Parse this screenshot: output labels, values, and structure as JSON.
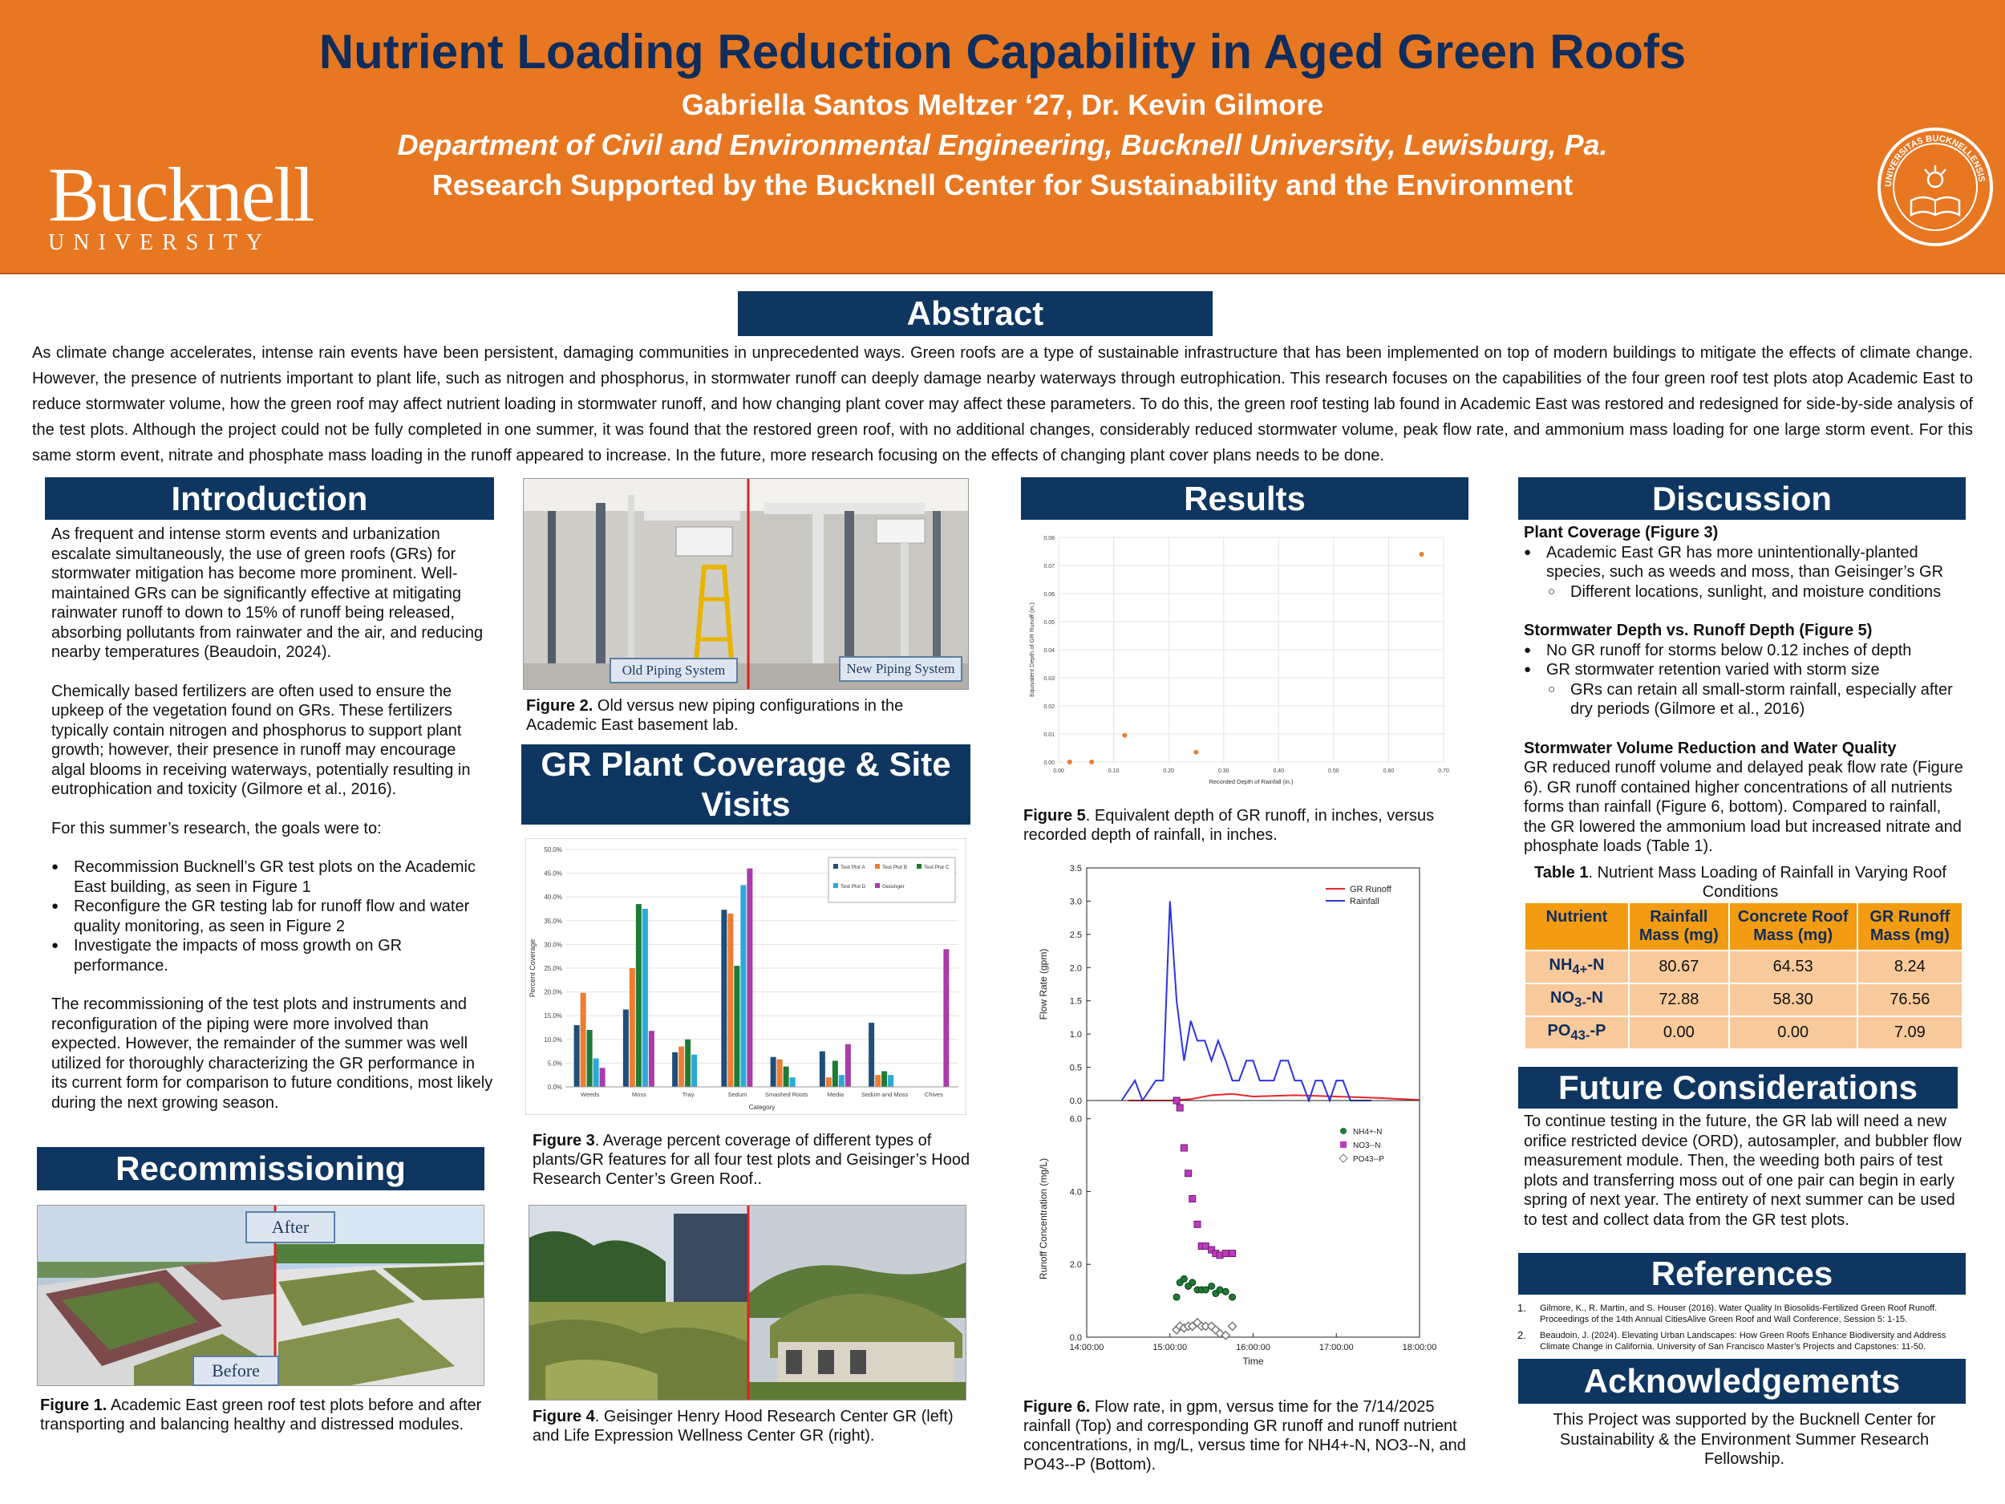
{
  "header": {
    "title": "Nutrient Loading Reduction Capability in Aged Green Roofs",
    "authors": "Gabriella Santos Meltzer ‘27, Dr. Kevin Gilmore",
    "department": "Department of Civil and Environmental Engineering, Bucknell University, Lewisburg, Pa.",
    "support": "Research Supported by the Bucknell Center for Sustainability and the Environment",
    "logo_word": "Bucknell",
    "logo_sub": "UNIVERSITY",
    "seal_text": "UNIVERSITAS BUCKNELLENSIS"
  },
  "colors": {
    "orange": "#E87722",
    "navy": "#0E3660",
    "title_navy": "#0E2D5C",
    "table_head": "#F39C12",
    "table_cell": "#F8C99B"
  },
  "abstract": {
    "heading": "Abstract",
    "text": "As climate change accelerates, intense rain events have been persistent, damaging communities in unprecedented ways. Green roofs are a type of sustainable infrastructure that has been implemented on top of modern buildings to mitigate the effects of climate change. However, the presence of nutrients important to plant life, such as nitrogen and phosphorus, in stormwater runoff can deeply damage nearby waterways through eutrophication. This research focuses on the capabilities of the four green roof test plots atop Academic East to reduce stormwater volume, how the green roof may affect nutrient loading in stormwater runoff, and how changing plant cover may affect these parameters. To do this, the green roof testing lab found in Academic East was restored and redesigned for side-by-side analysis of the test plots. Although the project could not be fully completed in one summer, it was found that the restored green roof, with no additional changes, considerably reduced stormwater volume, peak flow rate, and ammonium mass loading for one large storm event. For this same storm event, nitrate and phosphate mass loading in the runoff appeared to increase. In the future, more research focusing on the effects of changing plant cover plans needs to be done."
  },
  "introduction": {
    "heading": "Introduction",
    "p1": "As frequent and intense storm events and urbanization escalate simultaneously, the use of green roofs (GRs) for stormwater mitigation has become more prominent. Well-maintained GRs can be significantly effective at mitigating rainwater runoff to down to 15% of runoff being released, absorbing pollutants from rainwater and the air, and reducing nearby temperatures (Beaudoin, 2024).",
    "p2": "Chemically based fertilizers are often used to ensure the upkeep of the vegetation found on GRs. These fertilizers typically contain nitrogen and phosphorus to support plant growth; however, their presence in runoff may encourage algal blooms in receiving waterways, potentially resulting in eutrophication and toxicity (Gilmore et al., 2016).",
    "p3": "For this summer’s research, the goals were to:",
    "goals": [
      "Recommission Bucknell’s GR test plots on the Academic East building, as seen in Figure 1",
      "Reconfigure the GR testing lab for runoff flow and water quality monitoring, as seen in Figure 2",
      "Investigate the impacts of moss growth on GR performance."
    ],
    "p4": "The recommissioning of the test plots and instruments and reconfiguration of the piping were more involved than expected. However, the remainder of the summer was well utilized for thoroughly characterizing the GR performance in its current form for comparison to future conditions, most likely during the next growing season."
  },
  "recommissioning": {
    "heading": "Recommissioning",
    "after_label": "After",
    "before_label": "Before",
    "fig_label": "Figure 1.",
    "caption": " Academic East green roof test plots before and after transporting and balancing healthy and distressed modules."
  },
  "figure2": {
    "old_label": "Old Piping System",
    "new_label": "New Piping System",
    "fig_label": "Figure 2.",
    "caption": " Old versus new piping configurations in the Academic East basement lab."
  },
  "plant_coverage": {
    "heading": "GR Plant Coverage & Site Visits",
    "fig3_label": "Figure 3",
    "fig3_caption": ". Average percent coverage of different types of plants/GR features for all four test plots and Geisinger’s Hood Research Center’s Green Roof..",
    "fig4_label": "Figure 4",
    "fig4_caption": ". Geisinger Henry Hood Research Center GR (left) and Life Expression Wellness Center GR (right)."
  },
  "results": {
    "heading": "Results",
    "fig5_label": "Figure 5",
    "fig5_caption": ". Equivalent depth of GR runoff, in inches, versus recorded depth of rainfall, in inches.",
    "fig6_label": "Figure 6.",
    "fig6_caption": " Flow rate, in gpm, versus time for the 7/14/2025 rainfall (Top) and corresponding GR runoff and runoff nutrient concentrations, in mg/L, versus time for NH4+-N, NO3--N, and PO43--P (Bottom)."
  },
  "discussion": {
    "heading": "Discussion",
    "s1_head": "Plant Coverage (Figure 3)",
    "s1_b1": "Academic East GR has more unintentionally-planted species, such as weeds and moss, than Geisinger’s GR",
    "s1_sub1": "Different locations, sunlight, and moisture conditions",
    "s2_head": "Stormwater Depth vs. Runoff Depth (Figure 5)",
    "s2_b1": "No GR runoff for storms below 0.12 inches of depth",
    "s2_b2": "GR stormwater retention varied with storm size",
    "s2_sub1": "GRs can retain all small-storm rainfall, especially after dry periods (Gilmore et al., 2016)",
    "s3_head": "Stormwater Volume Reduction and Water Quality",
    "s3_text": "GR reduced runoff volume and delayed peak flow rate (Figure 6). GR runoff contained higher concentrations of all nutrients forms than rainfall (Figure 6, bottom). Compared to rainfall, the GR lowered the ammonium load but increased nitrate and phosphate loads (Table 1).",
    "table_label": "Table 1",
    "table_caption": ". Nutrient Mass Loading of Rainfall in Varying Roof Conditions",
    "table_headers": [
      "Nutrient",
      "Rainfall Mass (mg)",
      "Concrete Roof Mass (mg)",
      "GR Runoff Mass (mg)"
    ],
    "table_rows": [
      {
        "n1": "NH",
        "sup": "4+",
        "n2": "-N",
        "values": [
          "80.67",
          "64.53",
          "8.24"
        ]
      },
      {
        "n1": "NO",
        "sup": "3-",
        "n2": "-N",
        "values": [
          "72.88",
          "58.30",
          "76.56"
        ]
      },
      {
        "n1": "PO",
        "sup": "43-",
        "n2": "-P",
        "values": [
          "0.00",
          "0.00",
          "7.09"
        ]
      }
    ]
  },
  "future": {
    "heading": "Future Considerations",
    "text": "To continue testing in the future, the GR lab will need a new orifice restricted device (ORD), autosampler, and bubbler flow measurement module. Then, the weeding both pairs of test plots and transferring moss out of one pair can begin in early spring of next year. The entirety of next summer can be used to test and collect data from the GR test plots."
  },
  "references": {
    "heading": "References",
    "items": [
      {
        "n": "1.",
        "text": "Gilmore, K., R. Martin, and S. Houser (2016). Water Quality In Biosolids-Fertilized Green Roof Runoff. Proceedings of the 14th Annual CitiesAlive Green Roof and Wall Conference, Session 5: 1-15."
      },
      {
        "n": "2.",
        "text": "Beaudoin, J. (2024). Elevating Urban Landscapes: How Green Roofs Enhance Biodiversity and Address Climate Change in California. University of San Francisco Master’s Projects and Capstones: 11-50."
      }
    ]
  },
  "acknowledgements": {
    "heading": "Acknowledgements",
    "text": "This Project was supported by the Bucknell Center for Sustainability & the Environment Summer Research Fellowship."
  },
  "chart_data": [
    {
      "type": "bar",
      "id": "fig3",
      "categories": [
        "Weeds",
        "Moss",
        "Tray",
        "Sedum",
        "Smashed Roots",
        "Media",
        "Sedum and Moss",
        "Chives"
      ],
      "series": [
        {
          "name": "Test Plot A",
          "color": "#1F4E79",
          "values": [
            13,
            16.3,
            7.3,
            37.3,
            6.3,
            7.5,
            13.5,
            0
          ]
        },
        {
          "name": "Test Plot B",
          "color": "#ED7D31",
          "values": [
            19.8,
            25,
            8.5,
            36.5,
            5.8,
            2,
            2.5,
            0
          ]
        },
        {
          "name": "Test Plot C",
          "color": "#1E7B34",
          "values": [
            12,
            38.5,
            10,
            25.5,
            4.3,
            5.5,
            3.3,
            0
          ]
        },
        {
          "name": "Test Plot D",
          "color": "#2AAAD8",
          "values": [
            6,
            37.5,
            6.8,
            42.5,
            2,
            2.5,
            2.5,
            0
          ]
        },
        {
          "name": "Geisinger",
          "color": "#A93CA8",
          "values": [
            4,
            11.8,
            0,
            46,
            0,
            9,
            0,
            29
          ]
        }
      ],
      "xlabel": "Category",
      "ylabel": "Percent Coverage",
      "ylim": [
        0,
        50
      ],
      "yticks": [
        "0.0%",
        "5.0%",
        "10.0%",
        "15.0%",
        "20.0%",
        "25.0%",
        "30.0%",
        "35.0%",
        "40.0%",
        "45.0%",
        "50.0%"
      ],
      "legend": "top-right",
      "grid": true
    },
    {
      "type": "scatter",
      "id": "fig5",
      "points": [
        [
          0.02,
          0
        ],
        [
          0.06,
          0
        ],
        [
          0.12,
          0.0095
        ],
        [
          0.25,
          0.0035
        ],
        [
          0.66,
          0.074
        ]
      ],
      "xlabel": "Recorded Depth of Rainfall (in.)",
      "ylabel": "Equivalent Depth of GR Runoff (in.)",
      "xlim": [
        0,
        0.7
      ],
      "ylim": [
        0,
        0.08
      ],
      "xticks": [
        "0.00",
        "0.10",
        "0.20",
        "0.30",
        "0.40",
        "0.50",
        "0.60",
        "0.70"
      ],
      "yticks": [
        "0.00",
        "0.01",
        "0.02",
        "0.03",
        "0.04",
        "0.05",
        "0.06",
        "0.07",
        "0.08"
      ],
      "color": "#ED7D31",
      "grid": true
    },
    {
      "type": "line",
      "id": "fig6-top",
      "x_unit": "hours",
      "xlim": [
        14,
        18
      ],
      "ylim": [
        0,
        3.5
      ],
      "yticks": [
        "0.0",
        "0.5",
        "1.0",
        "1.5",
        "2.0",
        "2.5",
        "3.0",
        "3.5"
      ],
      "ylabel": "Flow Rate (gpm)",
      "legend": "top-right",
      "series": [
        {
          "name": "GR Runoff",
          "color": "#E8262B",
          "x": [
            14.5,
            15.0,
            15.25,
            15.5,
            15.75,
            16.0,
            16.5,
            17.0,
            17.5,
            18.0
          ],
          "y": [
            0,
            0,
            0.02,
            0.08,
            0.1,
            0.06,
            0.08,
            0.06,
            0.04,
            0.01
          ]
        },
        {
          "name": "Rainfall",
          "color": "#2B35E0",
          "x": [
            14.42,
            14.58,
            14.67,
            14.83,
            14.92,
            15.0,
            15.08,
            15.17,
            15.25,
            15.33,
            15.42,
            15.5,
            15.58,
            15.67,
            15.75,
            15.83,
            15.92,
            16.0,
            16.08,
            16.17,
            16.25,
            16.33,
            16.42,
            16.5,
            16.58,
            16.67,
            16.75,
            16.83,
            16.92,
            17.0,
            17.08,
            17.17,
            17.25,
            17.33,
            17.42
          ],
          "y": [
            0,
            0.3,
            0,
            0.3,
            0.3,
            3.0,
            1.5,
            0.6,
            1.2,
            0.9,
            0.9,
            0.6,
            0.9,
            0.6,
            0.3,
            0.3,
            0.6,
            0.6,
            0.3,
            0.3,
            0.3,
            0.6,
            0.6,
            0.3,
            0.3,
            0.0,
            0.3,
            0.3,
            0.0,
            0.3,
            0.3,
            0.0,
            0.0,
            0.0,
            0.0
          ]
        }
      ]
    },
    {
      "type": "scatter",
      "id": "fig6-bottom",
      "x_unit": "hours",
      "xlim": [
        14,
        18
      ],
      "xticks": [
        "14:00:00",
        "15:00:00",
        "16:00:00",
        "17:00:00",
        "18:00:00"
      ],
      "xlabel": "Time",
      "ylim": [
        0,
        6.5
      ],
      "yticks": [
        "0.0",
        "2.0",
        "4.0",
        "6.0"
      ],
      "ylabel": "Runoff Concentration (mg/L)",
      "legend": "top-right",
      "series": [
        {
          "name": "NH4+-N",
          "color": "#1E7B34",
          "x": [
            15.08,
            15.12,
            15.17,
            15.22,
            15.27,
            15.33,
            15.38,
            15.43,
            15.5,
            15.55,
            15.6,
            15.67,
            15.75
          ],
          "y": [
            1.1,
            1.5,
            1.6,
            1.4,
            1.5,
            1.3,
            1.3,
            1.3,
            1.4,
            1.2,
            1.3,
            1.25,
            1.1
          ]
        },
        {
          "name": "NO3--N",
          "color": "#C03AC0",
          "x": [
            15.08,
            15.12,
            15.17,
            15.22,
            15.27,
            15.33,
            15.38,
            15.43,
            15.5,
            15.55,
            15.6,
            15.67,
            15.75
          ],
          "y": [
            6.5,
            6.3,
            5.2,
            4.5,
            3.8,
            3.1,
            2.5,
            2.5,
            2.4,
            2.3,
            2.25,
            2.3,
            2.3
          ]
        },
        {
          "name": "PO43--P",
          "color": "#777777",
          "x": [
            15.08,
            15.12,
            15.17,
            15.22,
            15.27,
            15.33,
            15.38,
            15.43,
            15.5,
            15.55,
            15.6,
            15.67,
            15.75
          ],
          "y": [
            0.2,
            0.3,
            0.25,
            0.3,
            0.3,
            0.4,
            0.3,
            0.3,
            0.3,
            0.2,
            0.1,
            0.05,
            0.3
          ]
        }
      ]
    }
  ]
}
